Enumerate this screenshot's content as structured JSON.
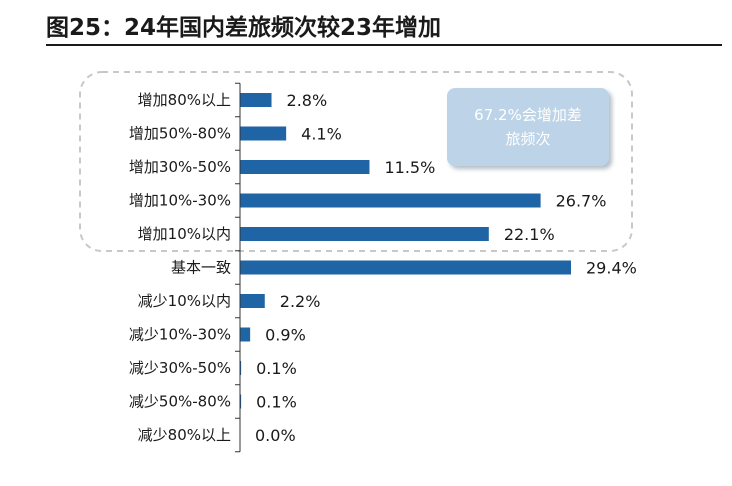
{
  "header": {
    "title": "图25：24年国内差旅频次较23年增加"
  },
  "callout": {
    "text": "67.2%会增加差旅频次"
  },
  "colors": {
    "bar": "#1f65a6",
    "axis": "#333333",
    "dash_box": "#c8c8c8",
    "callout_bg": "#bcd3e8"
  },
  "chart_data": {
    "type": "bar",
    "orientation": "horizontal",
    "categories": [
      "增加80%以上",
      "增加50%-80%",
      "增加30%-50%",
      "增加10%-30%",
      "增加10%以内",
      "基本一致",
      "减少10%以内",
      "减少10%-30%",
      "减少30%-50%",
      "减少50%-80%",
      "减少80%以上"
    ],
    "values": [
      2.8,
      4.1,
      11.5,
      26.7,
      22.1,
      29.4,
      2.2,
      0.9,
      0.1,
      0.1,
      0.0
    ],
    "value_labels": [
      "2.8%",
      "4.1%",
      "11.5%",
      "26.7%",
      "22.1%",
      "29.4%",
      "2.2%",
      "0.9%",
      "0.1%",
      "0.1%",
      "0.0%"
    ],
    "unit": "%",
    "title": "",
    "xlabel": "",
    "ylabel": "",
    "grid": false,
    "legend": "none"
  }
}
